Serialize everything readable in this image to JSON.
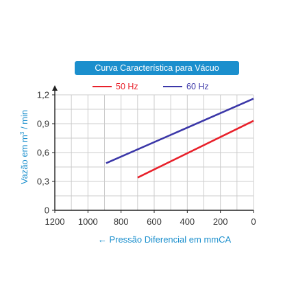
{
  "chart_data": {
    "type": "line",
    "title": "Curva Característica para Vácuo",
    "xlabel": "← Pressão Diferencial em mmCA",
    "ylabel_parts": {
      "pre": "Vazão em m",
      "sup": "3",
      "post": " / min"
    },
    "xlim": [
      1200,
      0
    ],
    "ylim": [
      0,
      1.2
    ],
    "x_ticks": [
      "1200",
      "1000",
      "800",
      "600",
      "400",
      "200",
      "0"
    ],
    "y_ticks": [
      "0",
      "0,3",
      "0,6",
      "0,9",
      "1,2"
    ],
    "grid": true,
    "legend_position": "top",
    "series": [
      {
        "name": "50 Hz",
        "color": "#e8202a",
        "points": [
          [
            700,
            0.34
          ],
          [
            0,
            0.93
          ]
        ]
      },
      {
        "name": "60 Hz",
        "color": "#3b37a8",
        "points": [
          [
            890,
            0.49
          ],
          [
            0,
            1.16
          ]
        ]
      }
    ]
  },
  "colors": {
    "title_bg": "#1b8fcd",
    "axis_text": "#1b8fcd",
    "tick_text": "#333333",
    "grid": "#cccccc",
    "axis": "#222222"
  }
}
